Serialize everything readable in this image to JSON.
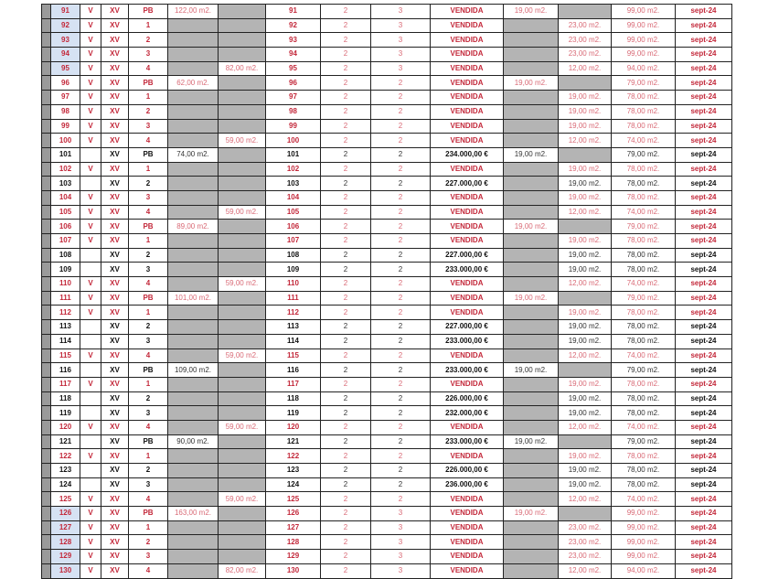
{
  "colors": {
    "sold": "#c3283a",
    "available": "#111111",
    "empty_cell": "#b4b4b4",
    "highlight": "#d6e2f3"
  },
  "rows": [
    [
      "91",
      "V",
      "XV",
      "PB",
      "122,00 m2.",
      "",
      "91",
      "2",
      "3",
      "VENDIDA",
      "19,00 m2.",
      "",
      "99,00 m2.",
      "sept-24"
    ],
    [
      "92",
      "V",
      "XV",
      "1",
      "",
      "",
      "92",
      "2",
      "3",
      "VENDIDA",
      "",
      "23,00 m2.",
      "99,00 m2.",
      "sept-24"
    ],
    [
      "93",
      "V",
      "XV",
      "2",
      "",
      "",
      "93",
      "2",
      "3",
      "VENDIDA",
      "",
      "23,00 m2.",
      "99,00 m2.",
      "sept-24"
    ],
    [
      "94",
      "V",
      "XV",
      "3",
      "",
      "",
      "94",
      "2",
      "3",
      "VENDIDA",
      "",
      "23,00 m2.",
      "99,00 m2.",
      "sept-24"
    ],
    [
      "95",
      "V",
      "XV",
      "4",
      "",
      "82,00 m2.",
      "95",
      "2",
      "3",
      "VENDIDA",
      "",
      "12,00 m2.",
      "94,00 m2.",
      "sept-24"
    ],
    [
      "96",
      "V",
      "XV",
      "PB",
      "62,00 m2.",
      "",
      "96",
      "2",
      "2",
      "VENDIDA",
      "19,00 m2.",
      "",
      "79,00 m2.",
      "sept-24"
    ],
    [
      "97",
      "V",
      "XV",
      "1",
      "",
      "",
      "97",
      "2",
      "2",
      "VENDIDA",
      "",
      "19,00 m2.",
      "78,00 m2.",
      "sept-24"
    ],
    [
      "98",
      "V",
      "XV",
      "2",
      "",
      "",
      "98",
      "2",
      "2",
      "VENDIDA",
      "",
      "19,00 m2.",
      "78,00 m2.",
      "sept-24"
    ],
    [
      "99",
      "V",
      "XV",
      "3",
      "",
      "",
      "99",
      "2",
      "2",
      "VENDIDA",
      "",
      "19,00 m2.",
      "78,00 m2.",
      "sept-24"
    ],
    [
      "100",
      "V",
      "XV",
      "4",
      "",
      "59,00 m2.",
      "100",
      "2",
      "2",
      "VENDIDA",
      "",
      "12,00 m2.",
      "74,00 m2.",
      "sept-24"
    ],
    [
      "101",
      "",
      "XV",
      "PB",
      "74,00 m2.",
      "",
      "101",
      "2",
      "2",
      "234.000,00 €",
      "19,00 m2.",
      "",
      "79,00 m2.",
      "sept-24"
    ],
    [
      "102",
      "V",
      "XV",
      "1",
      "",
      "",
      "102",
      "2",
      "2",
      "VENDIDA",
      "",
      "19,00 m2.",
      "78,00 m2.",
      "sept-24"
    ],
    [
      "103",
      "",
      "XV",
      "2",
      "",
      "",
      "103",
      "2",
      "2",
      "227.000,00 €",
      "",
      "19,00 m2.",
      "78,00 m2.",
      "sept-24"
    ],
    [
      "104",
      "V",
      "XV",
      "3",
      "",
      "",
      "104",
      "2",
      "2",
      "VENDIDA",
      "",
      "19,00 m2.",
      "78,00 m2.",
      "sept-24"
    ],
    [
      "105",
      "V",
      "XV",
      "4",
      "",
      "59,00 m2.",
      "105",
      "2",
      "2",
      "VENDIDA",
      "",
      "12,00 m2.",
      "74,00 m2.",
      "sept-24"
    ],
    [
      "106",
      "V",
      "XV",
      "PB",
      "89,00 m2.",
      "",
      "106",
      "2",
      "2",
      "VENDIDA",
      "19,00 m2.",
      "",
      "79,00 m2.",
      "sept-24"
    ],
    [
      "107",
      "V",
      "XV",
      "1",
      "",
      "",
      "107",
      "2",
      "2",
      "VENDIDA",
      "",
      "19,00 m2.",
      "78,00 m2.",
      "sept-24"
    ],
    [
      "108",
      "",
      "XV",
      "2",
      "",
      "",
      "108",
      "2",
      "2",
      "227.000,00 €",
      "",
      "19,00 m2.",
      "78,00 m2.",
      "sept-24"
    ],
    [
      "109",
      "",
      "XV",
      "3",
      "",
      "",
      "109",
      "2",
      "2",
      "233.000,00 €",
      "",
      "19,00 m2.",
      "78,00 m2.",
      "sept-24"
    ],
    [
      "110",
      "V",
      "XV",
      "4",
      "",
      "59,00 m2.",
      "110",
      "2",
      "2",
      "VENDIDA",
      "",
      "12,00 m2.",
      "74,00 m2.",
      "sept-24"
    ],
    [
      "111",
      "V",
      "XV",
      "PB",
      "101,00 m2.",
      "",
      "111",
      "2",
      "2",
      "VENDIDA",
      "19,00 m2.",
      "",
      "79,00 m2.",
      "sept-24"
    ],
    [
      "112",
      "V",
      "XV",
      "1",
      "",
      "",
      "112",
      "2",
      "2",
      "VENDIDA",
      "",
      "19,00 m2.",
      "78,00 m2.",
      "sept-24"
    ],
    [
      "113",
      "",
      "XV",
      "2",
      "",
      "",
      "113",
      "2",
      "2",
      "227.000,00 €",
      "",
      "19,00 m2.",
      "78,00 m2.",
      "sept-24"
    ],
    [
      "114",
      "",
      "XV",
      "3",
      "",
      "",
      "114",
      "2",
      "2",
      "233.000,00 €",
      "",
      "19,00 m2.",
      "78,00 m2.",
      "sept-24"
    ],
    [
      "115",
      "V",
      "XV",
      "4",
      "",
      "59,00 m2.",
      "115",
      "2",
      "2",
      "VENDIDA",
      "",
      "12,00 m2.",
      "74,00 m2.",
      "sept-24"
    ],
    [
      "116",
      "",
      "XV",
      "PB",
      "109,00 m2.",
      "",
      "116",
      "2",
      "2",
      "233.000,00 €",
      "19,00 m2.",
      "",
      "79,00 m2.",
      "sept-24"
    ],
    [
      "117",
      "V",
      "XV",
      "1",
      "",
      "",
      "117",
      "2",
      "2",
      "VENDIDA",
      "",
      "19,00 m2.",
      "78,00 m2.",
      "sept-24"
    ],
    [
      "118",
      "",
      "XV",
      "2",
      "",
      "",
      "118",
      "2",
      "2",
      "226.000,00 €",
      "",
      "19,00 m2.",
      "78,00 m2.",
      "sept-24"
    ],
    [
      "119",
      "",
      "XV",
      "3",
      "",
      "",
      "119",
      "2",
      "2",
      "232.000,00 €",
      "",
      "19,00 m2.",
      "78,00 m2.",
      "sept-24"
    ],
    [
      "120",
      "V",
      "XV",
      "4",
      "",
      "59,00 m2.",
      "120",
      "2",
      "2",
      "VENDIDA",
      "",
      "12,00 m2.",
      "74,00 m2.",
      "sept-24"
    ],
    [
      "121",
      "",
      "XV",
      "PB",
      "90,00 m2.",
      "",
      "121",
      "2",
      "2",
      "233.000,00 €",
      "19,00 m2.",
      "",
      "79,00 m2.",
      "sept-24"
    ],
    [
      "122",
      "V",
      "XV",
      "1",
      "",
      "",
      "122",
      "2",
      "2",
      "VENDIDA",
      "",
      "19,00 m2.",
      "78,00 m2.",
      "sept-24"
    ],
    [
      "123",
      "",
      "XV",
      "2",
      "",
      "",
      "123",
      "2",
      "2",
      "226.000,00 €",
      "",
      "19,00 m2.",
      "78,00 m2.",
      "sept-24"
    ],
    [
      "124",
      "",
      "XV",
      "3",
      "",
      "",
      "124",
      "2",
      "2",
      "236.000,00 €",
      "",
      "19,00 m2.",
      "78,00 m2.",
      "sept-24"
    ],
    [
      "125",
      "V",
      "XV",
      "4",
      "",
      "59,00 m2.",
      "125",
      "2",
      "2",
      "VENDIDA",
      "",
      "12,00 m2.",
      "74,00 m2.",
      "sept-24"
    ],
    [
      "126",
      "V",
      "XV",
      "PB",
      "163,00 m2.",
      "",
      "126",
      "2",
      "3",
      "VENDIDA",
      "19,00 m2.",
      "",
      "99,00 m2.",
      "sept-24"
    ],
    [
      "127",
      "V",
      "XV",
      "1",
      "",
      "",
      "127",
      "2",
      "3",
      "VENDIDA",
      "",
      "23,00 m2.",
      "99,00 m2.",
      "sept-24"
    ],
    [
      "128",
      "V",
      "XV",
      "2",
      "",
      "",
      "128",
      "2",
      "3",
      "VENDIDA",
      "",
      "23,00 m2.",
      "99,00 m2.",
      "sept-24"
    ],
    [
      "129",
      "V",
      "XV",
      "3",
      "",
      "",
      "129",
      "2",
      "3",
      "VENDIDA",
      "",
      "23,00 m2.",
      "99,00 m2.",
      "sept-24"
    ],
    [
      "130",
      "V",
      "XV",
      "4",
      "",
      "82,00 m2.",
      "130",
      "2",
      "3",
      "VENDIDA",
      "",
      "12,00 m2.",
      "94,00 m2.",
      "sept-24"
    ]
  ]
}
